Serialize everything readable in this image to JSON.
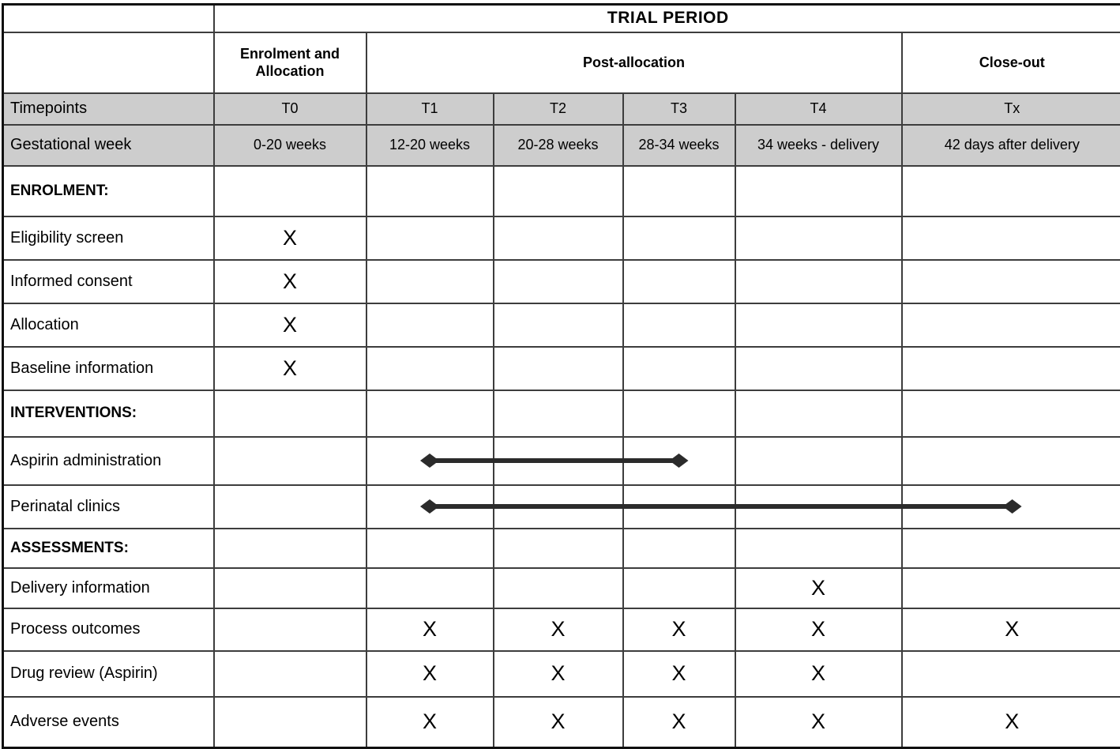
{
  "colors": {
    "header_gray": "#cdcdcd",
    "grid_line": "#3d3d3d",
    "outer_border": "#101010",
    "arrow": "#2b2b2b"
  },
  "header": {
    "title": "TRIAL PERIOD",
    "stages": {
      "enrolment": "Enrolment and Allocation",
      "post_allocation": "Post-allocation",
      "close_out": "Close-out"
    },
    "timepoints": {
      "label": "Timepoints",
      "cells": [
        "T0",
        "T1",
        "T2",
        "T3",
        "T4",
        "Tx"
      ]
    },
    "gestational": {
      "label": "Gestational week",
      "cells": [
        "0-20 weeks",
        "12-20 weeks",
        "20-28 weeks",
        "28-34 weeks",
        "34 weeks - delivery",
        "42 days after delivery"
      ]
    }
  },
  "body_rows": [
    {
      "label": "ENROLMENT:",
      "type": "section",
      "cells": [
        "",
        "",
        "",
        "",
        "",
        ""
      ]
    },
    {
      "label": "Eligibility screen",
      "type": "item",
      "cells": [
        "X",
        "",
        "",
        "",
        "",
        ""
      ]
    },
    {
      "label": "Informed consent",
      "type": "item",
      "cells": [
        "X",
        "",
        "",
        "",
        "",
        ""
      ]
    },
    {
      "label": "Allocation",
      "type": "item",
      "cells": [
        "X",
        "",
        "",
        "",
        "",
        ""
      ]
    },
    {
      "label": "Baseline information",
      "type": "item",
      "cells": [
        "X",
        "",
        "",
        "",
        "",
        ""
      ]
    },
    {
      "label": "INTERVENTIONS:",
      "type": "section",
      "cells": [
        "",
        "",
        "",
        "",
        "",
        ""
      ]
    },
    {
      "label": "Aspirin administration",
      "type": "item",
      "cells": [
        "",
        "",
        "",
        "",
        "",
        ""
      ],
      "arrow": {
        "from": "T1",
        "to": "T3",
        "style": "double-diamond"
      }
    },
    {
      "label": "Perinatal clinics",
      "type": "item",
      "cells": [
        "",
        "",
        "",
        "",
        "",
        ""
      ],
      "arrow": {
        "from": "T1",
        "to": "Tx",
        "style": "double-diamond"
      }
    },
    {
      "label": "ASSESSMENTS:",
      "type": "section",
      "cells": [
        "",
        "",
        "",
        "",
        "",
        ""
      ]
    },
    {
      "label": "Delivery information",
      "type": "item",
      "cells": [
        "",
        "",
        "",
        "",
        "X",
        ""
      ]
    },
    {
      "label": "Process outcomes",
      "type": "item",
      "cells": [
        "",
        "X",
        "X",
        "X",
        "X",
        "X"
      ]
    },
    {
      "label": "Drug review (Aspirin)",
      "type": "item",
      "cells": [
        "",
        "X",
        "X",
        "X",
        "X",
        ""
      ]
    },
    {
      "label": "Adverse events",
      "type": "item",
      "cells": [
        "",
        "X",
        "X",
        "X",
        "X",
        "X"
      ]
    }
  ]
}
